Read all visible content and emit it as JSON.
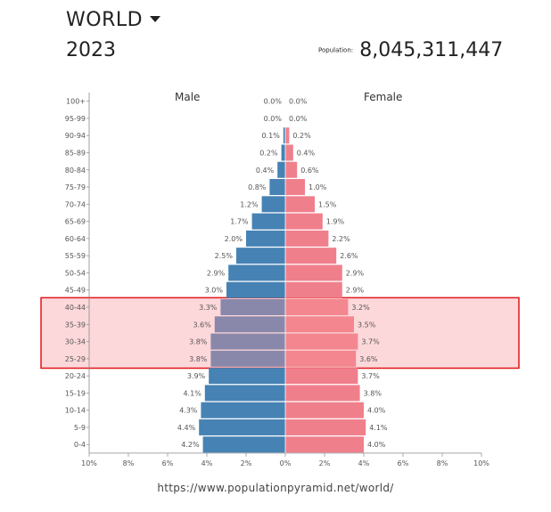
{
  "header": {
    "title": "WORLD",
    "year": "2023",
    "population_label": "Population:",
    "population_value": "8,045,311,447"
  },
  "legend": {
    "male": "Male",
    "female": "Female"
  },
  "source_url": "https://www.populationpyramid.net/world/",
  "colors": {
    "male": "#4682b4",
    "female": "#f07f8c",
    "highlight_fill": "#fdd8da",
    "highlight_border": "#e0161b",
    "male_highlight": "#8a88aa",
    "female_highlight": "#f3868f"
  },
  "chart_data": {
    "type": "bar",
    "orientation": "horizontal-pyramid",
    "categories": [
      "100+",
      "95-99",
      "90-94",
      "85-89",
      "80-84",
      "75-79",
      "70-74",
      "65-69",
      "60-64",
      "55-59",
      "50-54",
      "45-49",
      "40-44",
      "35-39",
      "30-34",
      "25-29",
      "20-24",
      "15-19",
      "10-14",
      "5-9",
      "0-4"
    ],
    "series": [
      {
        "name": "Male",
        "values": [
          0.0,
          0.0,
          0.1,
          0.2,
          0.4,
          0.8,
          1.2,
          1.7,
          2.0,
          2.5,
          2.9,
          3.0,
          3.3,
          3.6,
          3.8,
          3.8,
          3.9,
          4.1,
          4.3,
          4.4,
          4.2
        ]
      },
      {
        "name": "Female",
        "values": [
          0.0,
          0.0,
          0.2,
          0.4,
          0.6,
          1.0,
          1.5,
          1.9,
          2.2,
          2.6,
          2.9,
          2.9,
          3.2,
          3.5,
          3.7,
          3.6,
          3.7,
          3.8,
          4.0,
          4.1,
          4.0
        ]
      }
    ],
    "value_labels_male": [
      "0.0%",
      "0.0%",
      "0.1%",
      "0.2%",
      "0.4%",
      "0.8%",
      "1.2%",
      "1.7%",
      "2.0%",
      "2.5%",
      "2.9%",
      "3.0%",
      "3.3%",
      "3.6%",
      "3.8%",
      "3.8%",
      "3.9%",
      "4.1%",
      "4.3%",
      "4.4%",
      "4.2%"
    ],
    "value_labels_female": [
      "0.0%",
      "0.0%",
      "0.2%",
      "0.4%",
      "0.6%",
      "1.0%",
      "1.5%",
      "1.9%",
      "2.2%",
      "2.6%",
      "2.9%",
      "2.9%",
      "3.2%",
      "3.5%",
      "3.7%",
      "3.6%",
      "3.7%",
      "3.8%",
      "4.0%",
      "4.1%",
      "4.0%"
    ],
    "x_ticks": [
      "10%",
      "8%",
      "6%",
      "4%",
      "2%",
      "0%",
      "2%",
      "4%",
      "6%",
      "8%",
      "10%"
    ],
    "x_tick_values": [
      -10,
      -8,
      -6,
      -4,
      -2,
      0,
      2,
      4,
      6,
      8,
      10
    ],
    "xlim": [
      -10,
      10
    ],
    "xlabel": "",
    "ylabel": "",
    "highlighted_categories": [
      "40-44",
      "35-39",
      "30-34",
      "25-29"
    ]
  }
}
